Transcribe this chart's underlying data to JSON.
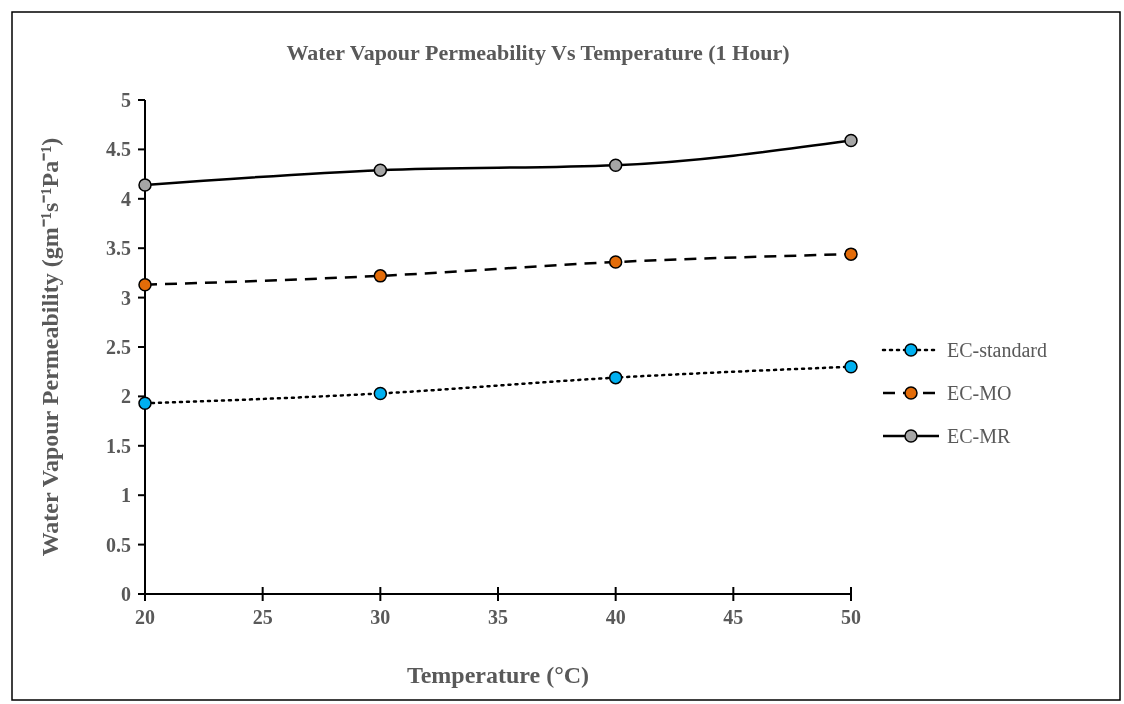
{
  "chart_data": {
    "type": "line",
    "title": "Water Vapour Permeability Vs Temperature (1 Hour)",
    "xlabel": "Temperature (°C)",
    "ylabel": "Water Vapour Permeability (gm⁻¹s⁻¹Pa⁻¹)",
    "x": [
      20,
      30,
      40,
      50
    ],
    "xlim": [
      20,
      50
    ],
    "xticks": [
      20,
      25,
      30,
      35,
      40,
      45,
      50
    ],
    "ylim": [
      0,
      5
    ],
    "yticks": [
      0,
      0.5,
      1,
      1.5,
      2,
      2.5,
      3,
      3.5,
      4,
      4.5,
      5
    ],
    "grid": false,
    "legend": "right",
    "marker": "circle",
    "series": [
      {
        "name": "EC-standard",
        "color": "#00b0f0",
        "line_style": "dotted",
        "values": [
          1.93,
          2.03,
          2.19,
          2.3
        ]
      },
      {
        "name": "EC-MO",
        "color": "#e36c09",
        "line_style": "dashed",
        "values": [
          3.13,
          3.22,
          3.36,
          3.44
        ]
      },
      {
        "name": "EC-MR",
        "color": "#a6a6a6",
        "line_style": "solid",
        "values": [
          4.14,
          4.29,
          4.34,
          4.59
        ]
      }
    ]
  }
}
